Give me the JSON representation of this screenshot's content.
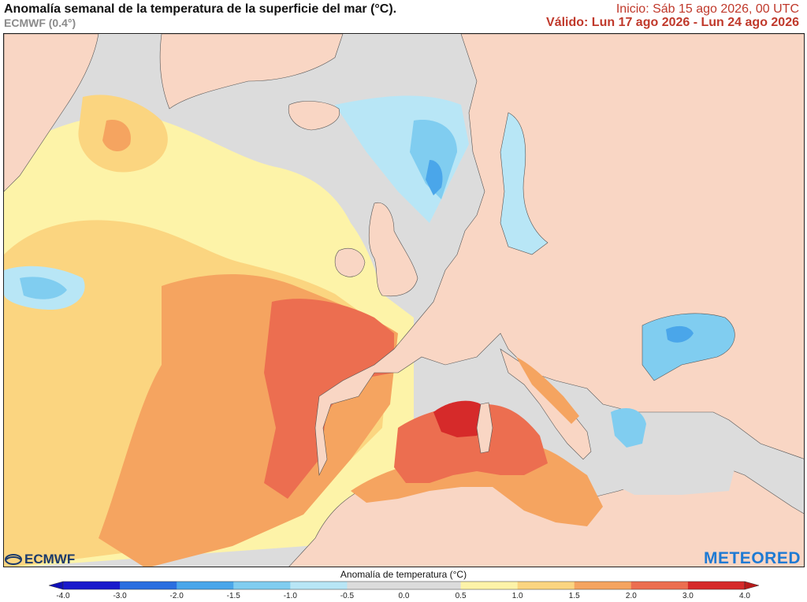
{
  "header": {
    "title": "Anomalía semanal de la temperatura de la superficie del mar (°C).",
    "model": "ECMWF (0.4°)",
    "init": "Inicio: Sáb 15 ago 2026, 00 UTC",
    "valid": "Válido: Lun 17 ago 2026 - Lun 24 ago 2026"
  },
  "logos": {
    "left": "ECMWF",
    "right": "METEORED"
  },
  "legend": {
    "title": "Anomalía de temperatura (°C)",
    "ticks": [
      "-4.0",
      "-3.0",
      "-2.0",
      "-1.5",
      "-1.0",
      "-0.5",
      "0.0",
      "0.5",
      "1.0",
      "1.5",
      "2.0",
      "3.0",
      "4.0"
    ],
    "colors": [
      "#1a1acc",
      "#2a6ee0",
      "#4aa6ea",
      "#80cdf0",
      "#b8e6f6",
      "#dcdcdc",
      "#dcdcdc",
      "#fdf3a8",
      "#fbd580",
      "#f5a460",
      "#ec6e50",
      "#d62a2a"
    ],
    "end_low": "#1111b8",
    "end_high": "#b81b1b"
  },
  "palette": {
    "land": "#f9d6c4",
    "neutral_sea": "#dcdcdc",
    "anom_0_5": "#fdf3a8",
    "anom_1_0": "#fbd580",
    "anom_1_5": "#f5a460",
    "anom_2_0": "#ec6e50",
    "anom_3_0": "#d62a2a",
    "cool_0_5": "#b8e6f6",
    "cool_1_0": "#80cdf0",
    "cool_1_5": "#4aa6ea",
    "cool_2_0": "#2a6ee0",
    "header_red": "#c0392b",
    "ecmwf_blue": "#1b3a6b",
    "meteored_blue": "#1e7ad3"
  }
}
